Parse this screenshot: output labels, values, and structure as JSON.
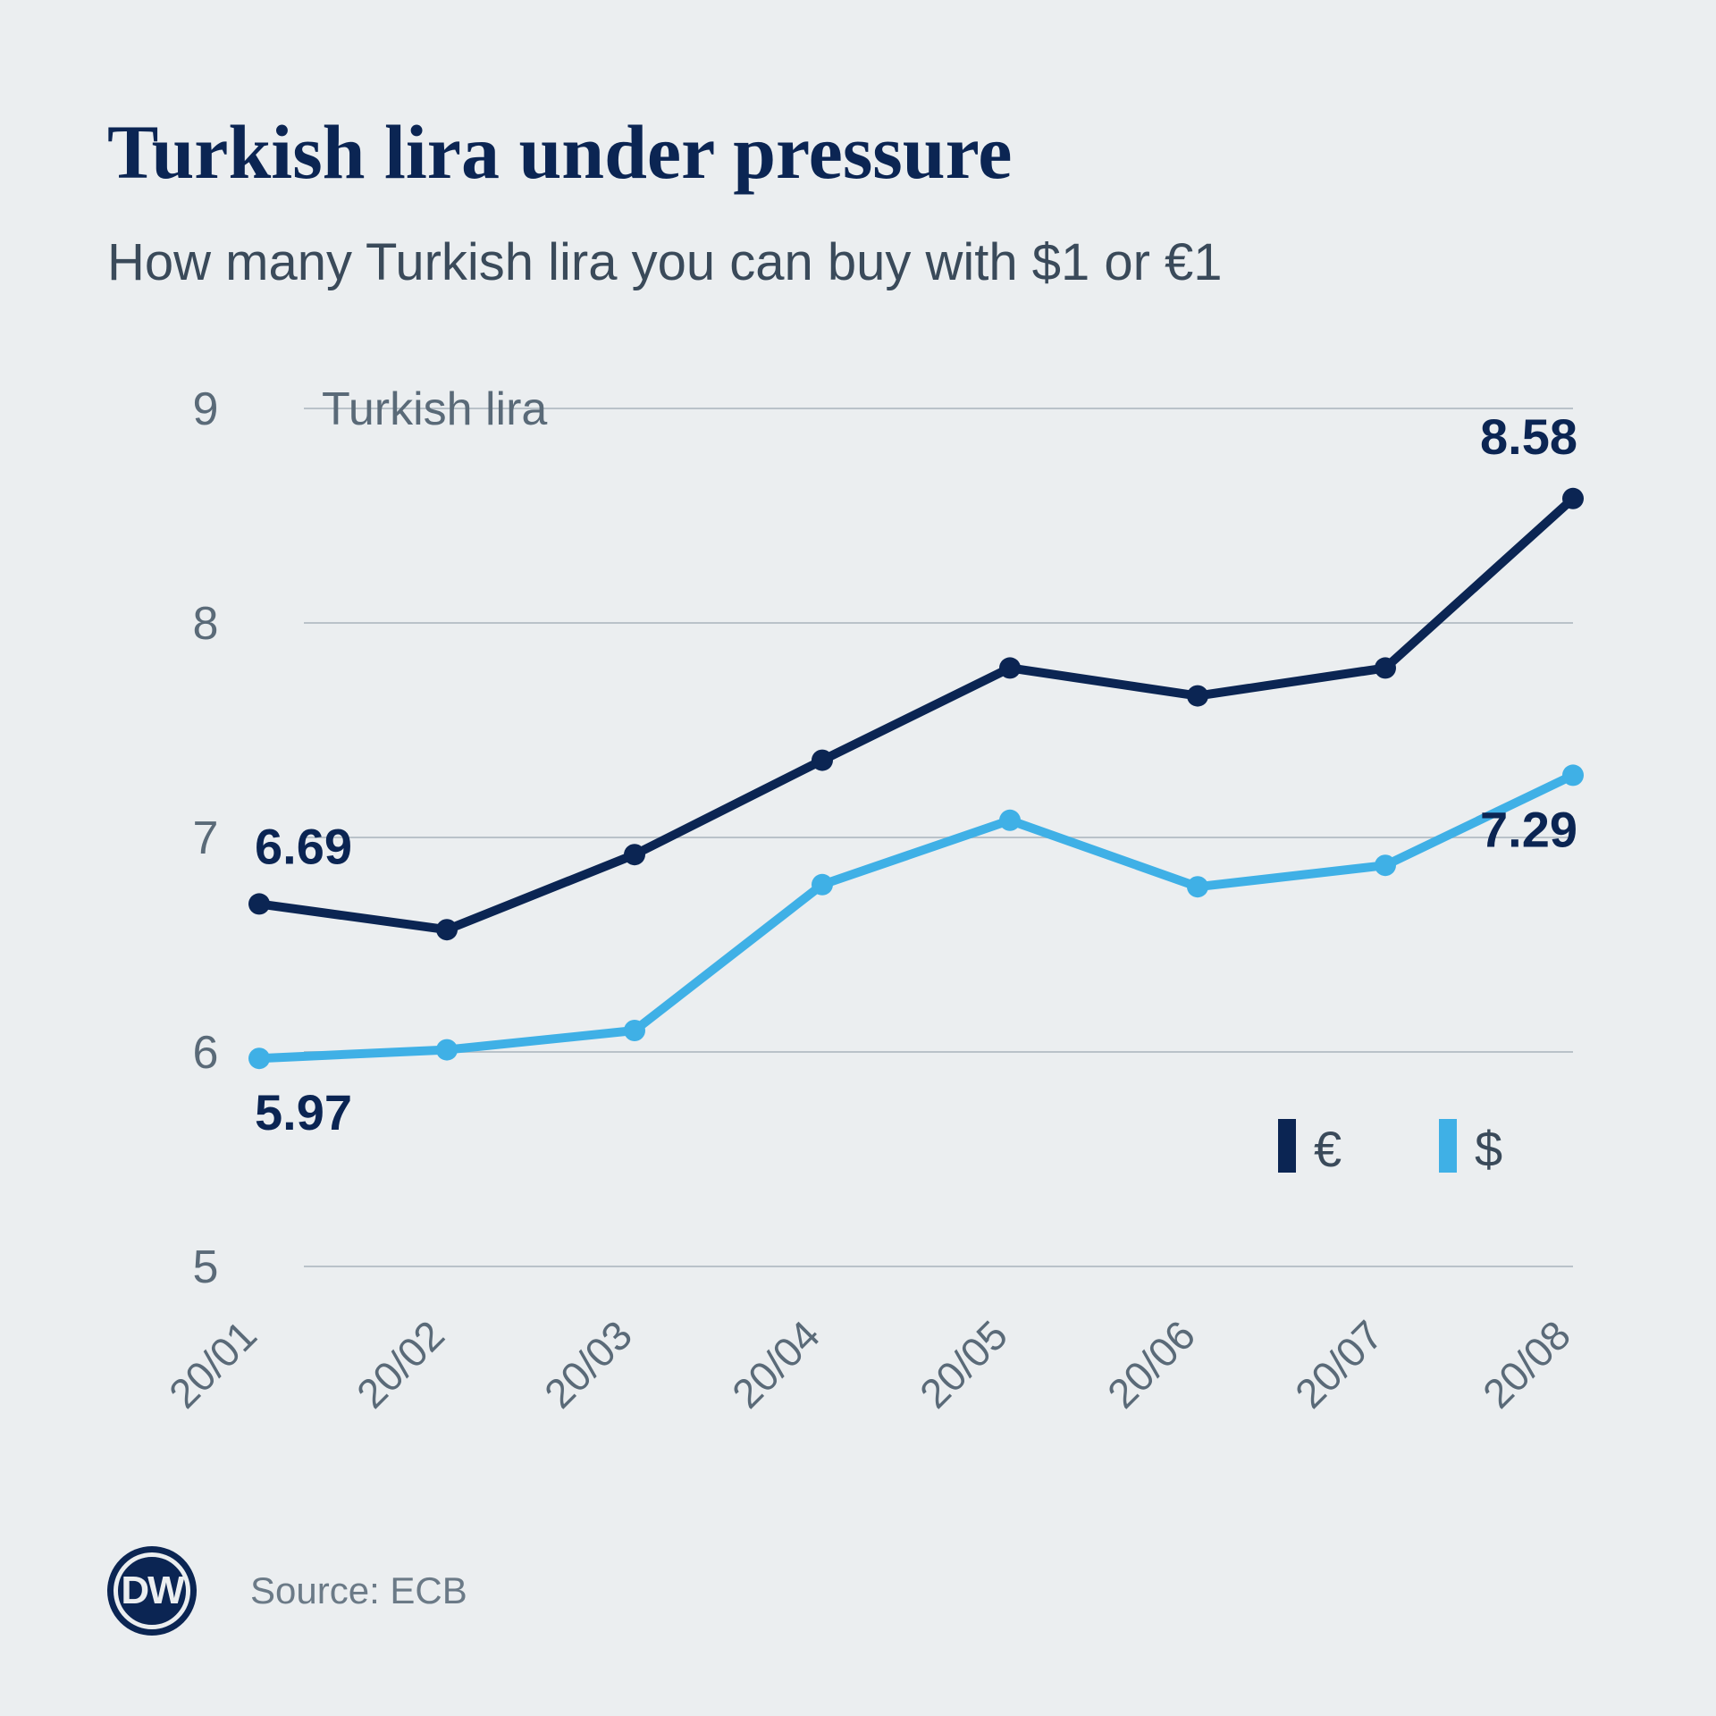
{
  "title": "Turkish lira under pressure",
  "subtitle": "How many Turkish lira you can buy with $1 or €1",
  "y_axis_title": "Turkish lira",
  "source_label": "Source: ECB",
  "logo_text": "DW",
  "colors": {
    "background": "#ebeef0",
    "title": "#0b2553",
    "subtitle": "#3a4a5a",
    "grid": "#b9c2c9",
    "tick_text": "#5a6a78",
    "euro": "#0b2553",
    "dollar": "#3fb0e6"
  },
  "chart": {
    "type": "line",
    "ylim": [
      5,
      9
    ],
    "ytick_step": 1,
    "yticks": [
      5,
      6,
      7,
      8,
      9
    ],
    "x_categories": [
      "20/01",
      "20/02",
      "20/03",
      "20/04",
      "20/05",
      "20/06",
      "20/07",
      "20/08"
    ],
    "series": [
      {
        "id": "euro",
        "legend_symbol": "€",
        "color": "#0b2553",
        "values": [
          6.69,
          6.57,
          6.92,
          7.36,
          7.79,
          7.66,
          7.79,
          8.58
        ],
        "marker_radius": 12,
        "line_width": 10,
        "point_labels": [
          {
            "i": 0,
            "text": "6.69",
            "dy": -45,
            "anchor": "start"
          },
          {
            "i": 7,
            "text": "8.58",
            "dy": -50,
            "anchor": "end"
          }
        ]
      },
      {
        "id": "dollar",
        "legend_symbol": "$",
        "color": "#3fb0e6",
        "values": [
          5.97,
          6.01,
          6.1,
          6.78,
          7.08,
          6.77,
          6.87,
          7.29
        ],
        "marker_radius": 12,
        "line_width": 10,
        "point_labels": [
          {
            "i": 0,
            "text": "5.97",
            "dy": 80,
            "anchor": "start",
            "text_color": "#0b2553"
          },
          {
            "i": 7,
            "text": "7.29",
            "dy": 80,
            "anchor": "end",
            "text_color": "#0b2553"
          }
        ]
      }
    ],
    "legend": {
      "items": [
        {
          "series": "euro",
          "symbol": "€"
        },
        {
          "series": "dollar",
          "symbol": "$"
        }
      ]
    },
    "title_fontsize": 86,
    "subtitle_fontsize": 58,
    "tick_fontsize": 52,
    "xlabel_fontsize": 46,
    "point_label_fontsize": 56
  }
}
